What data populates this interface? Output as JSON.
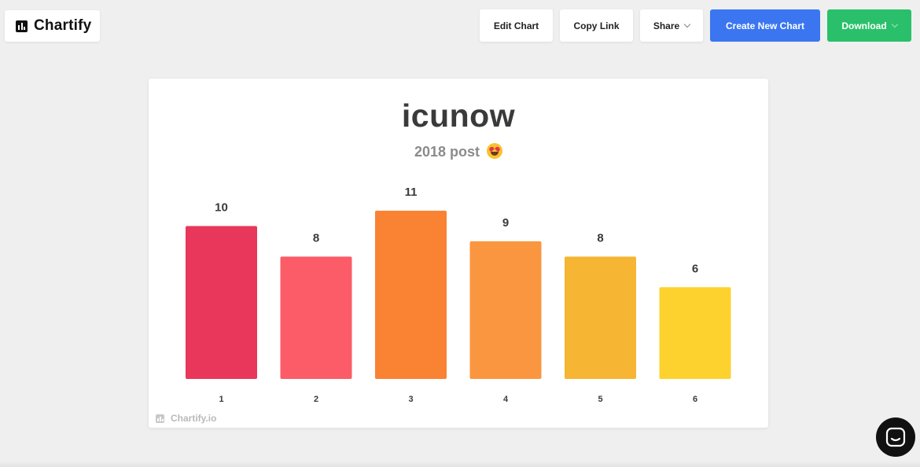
{
  "brand": {
    "name": "Chartify",
    "icon": "bar-chart-icon"
  },
  "toolbar": {
    "edit_label": "Edit Chart",
    "copy_label": "Copy Link",
    "share_label": "Share",
    "create_label": "Create New Chart",
    "download_label": "Download"
  },
  "colors": {
    "create_button": "#3b76f0",
    "download_button": "#2ac06b",
    "background": "#efefef"
  },
  "watermark": {
    "text": "Chartify.io",
    "icon": "bar-chart-icon"
  },
  "chat": {
    "icon": "chat-icon"
  },
  "chart_data": {
    "type": "bar",
    "title": "icunow",
    "subtitle": "2018 post",
    "subtitle_emoji": "heart-eyes-emoji",
    "categories": [
      "1",
      "2",
      "3",
      "4",
      "5",
      "6"
    ],
    "values": [
      10,
      8,
      11,
      9,
      8,
      6
    ],
    "bar_colors": [
      "#e8375a",
      "#fb5c67",
      "#fa8233",
      "#fb9640",
      "#f6b532",
      "#fdd22f"
    ],
    "data_labels": true,
    "grid": false,
    "legend": "none",
    "xlabel": "",
    "ylabel": "",
    "ylim": [
      0,
      11
    ]
  }
}
